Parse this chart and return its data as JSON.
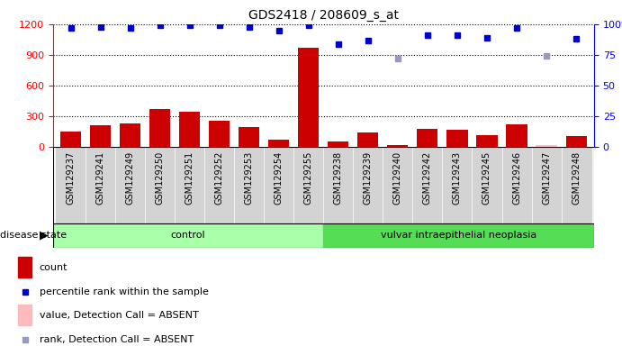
{
  "title": "GDS2418 / 208609_s_at",
  "samples": [
    "GSM129237",
    "GSM129241",
    "GSM129249",
    "GSM129250",
    "GSM129251",
    "GSM129252",
    "GSM129253",
    "GSM129254",
    "GSM129255",
    "GSM129238",
    "GSM129239",
    "GSM129240",
    "GSM129242",
    "GSM129243",
    "GSM129245",
    "GSM129246",
    "GSM129247",
    "GSM129248"
  ],
  "count_values": [
    155,
    210,
    230,
    370,
    345,
    255,
    195,
    75,
    970,
    55,
    140,
    15,
    175,
    165,
    120,
    220,
    20,
    105
  ],
  "absent_count_values": [
    null,
    null,
    null,
    null,
    null,
    null,
    null,
    null,
    null,
    null,
    null,
    null,
    null,
    null,
    null,
    null,
    18,
    null
  ],
  "percentile_values": [
    97,
    98,
    97,
    99,
    99,
    99,
    98,
    95,
    99,
    84,
    87,
    null,
    91,
    91,
    89,
    97,
    null,
    88
  ],
  "absent_percentile_values": [
    null,
    null,
    null,
    null,
    null,
    null,
    null,
    null,
    null,
    null,
    null,
    72,
    null,
    null,
    null,
    null,
    74,
    null
  ],
  "n_control": 9,
  "n_total": 18,
  "ylim_left": [
    0,
    1200
  ],
  "ylim_right": [
    0,
    100
  ],
  "yticks_left": [
    0,
    300,
    600,
    900,
    1200
  ],
  "yticks_right": [
    0,
    25,
    50,
    75,
    100
  ],
  "bar_color": "#cc0000",
  "absent_bar_color": "#ffbbbb",
  "dot_color": "#0000cc",
  "absent_dot_color": "#9999bb",
  "tick_bg_color": "#d3d3d3",
  "control_color": "#aaffaa",
  "neoplasia_color": "#55dd55",
  "control_label": "control",
  "neoplasia_label": "vulvar intraepithelial neoplasia",
  "disease_state_label": "disease state",
  "legend": [
    {
      "label": "count",
      "color": "#cc0000",
      "type": "bar"
    },
    {
      "label": "percentile rank within the sample",
      "color": "#0000cc",
      "type": "dot"
    },
    {
      "label": "value, Detection Call = ABSENT",
      "color": "#ffbbbb",
      "type": "bar"
    },
    {
      "label": "rank, Detection Call = ABSENT",
      "color": "#9999bb",
      "type": "dot"
    }
  ]
}
